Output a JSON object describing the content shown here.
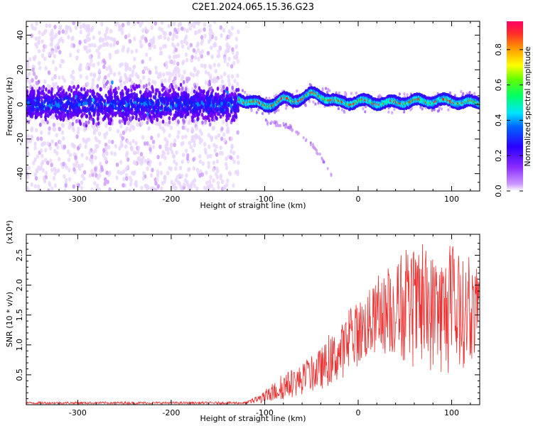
{
  "figure": {
    "title": "C2E1.2024.065.15.36.G23"
  },
  "chart_data": [
    {
      "type": "heatmap",
      "xlabel": "Height of straight line (km)",
      "ylabel": "Frequency (Hz)",
      "xlim": [
        -355,
        130
      ],
      "ylim": [
        -50,
        48
      ],
      "xticks": [
        -300,
        -200,
        -100,
        0,
        100
      ],
      "yticks": [
        -40,
        -20,
        0,
        20,
        40
      ],
      "colorbar": {
        "label": "Normalized spectral amplitude",
        "range": [
          0.0,
          0.96
        ],
        "ticks": [
          "0.0",
          "0.2",
          "0.4",
          "0.6",
          "0.8"
        ],
        "colormap": [
          "#ffffff",
          "#cc99ff",
          "#7000ff",
          "#0000ff",
          "#00e5ff",
          "#00ff00",
          "#ffff00",
          "#ff9900",
          "#ff0033"
        ]
      },
      "features": {
        "noise_region_x": [
          -355,
          -128
        ],
        "noise_band_center_hz": 0,
        "noise_band_halfwidth_hz": 9,
        "signal_trace": {
          "x": [
            -128,
            -115,
            -100,
            -90,
            -80,
            -70,
            -60,
            -50,
            -40,
            -30,
            -20,
            -10,
            0,
            20,
            40,
            60,
            80,
            100,
            120,
            130
          ],
          "y": [
            3,
            2,
            -1,
            1,
            3,
            2,
            4,
            6,
            5,
            3,
            1,
            1,
            2,
            1,
            1,
            2,
            2,
            2,
            1,
            1
          ]
        },
        "descending_branch": {
          "x": [
            -100,
            -90,
            -80,
            -70,
            -60,
            -50,
            -40,
            -30,
            -27
          ],
          "y": [
            -10,
            -11,
            -12,
            -14,
            -18,
            -23,
            -30,
            -38,
            -44
          ]
        }
      }
    },
    {
      "type": "line",
      "xlabel": "Height of straight line (km)",
      "ylabel": "SNR (10 * v/v)",
      "y_multiplier": "(x10⁴)",
      "xlim": [
        -355,
        130
      ],
      "ylim": [
        0,
        2.85
      ],
      "xticks": [
        -300,
        -200,
        -100,
        0,
        100
      ],
      "yticks": [
        0.5,
        1.0,
        1.5,
        2.0,
        2.5
      ],
      "ytick_labels": [
        "0.5",
        "1.0",
        "1.5",
        "2.0",
        "2.5"
      ],
      "series": [
        {
          "color": "#ee3333",
          "envelope": {
            "x": [
              -355,
              -120,
              -100,
              -80,
              -60,
              -40,
              -20,
              0,
              20,
              40,
              60,
              80,
              100,
              130
            ],
            "mean": [
              0.03,
              0.03,
              0.12,
              0.3,
              0.42,
              0.6,
              0.85,
              1.2,
              1.45,
              1.6,
              1.55,
              1.55,
              1.5,
              1.55
            ],
            "amplitude": [
              0.02,
              0.02,
              0.1,
              0.22,
              0.25,
              0.35,
              0.45,
              0.55,
              0.6,
              0.8,
              0.95,
              1.0,
              1.05,
              0.7
            ]
          }
        }
      ]
    }
  ]
}
